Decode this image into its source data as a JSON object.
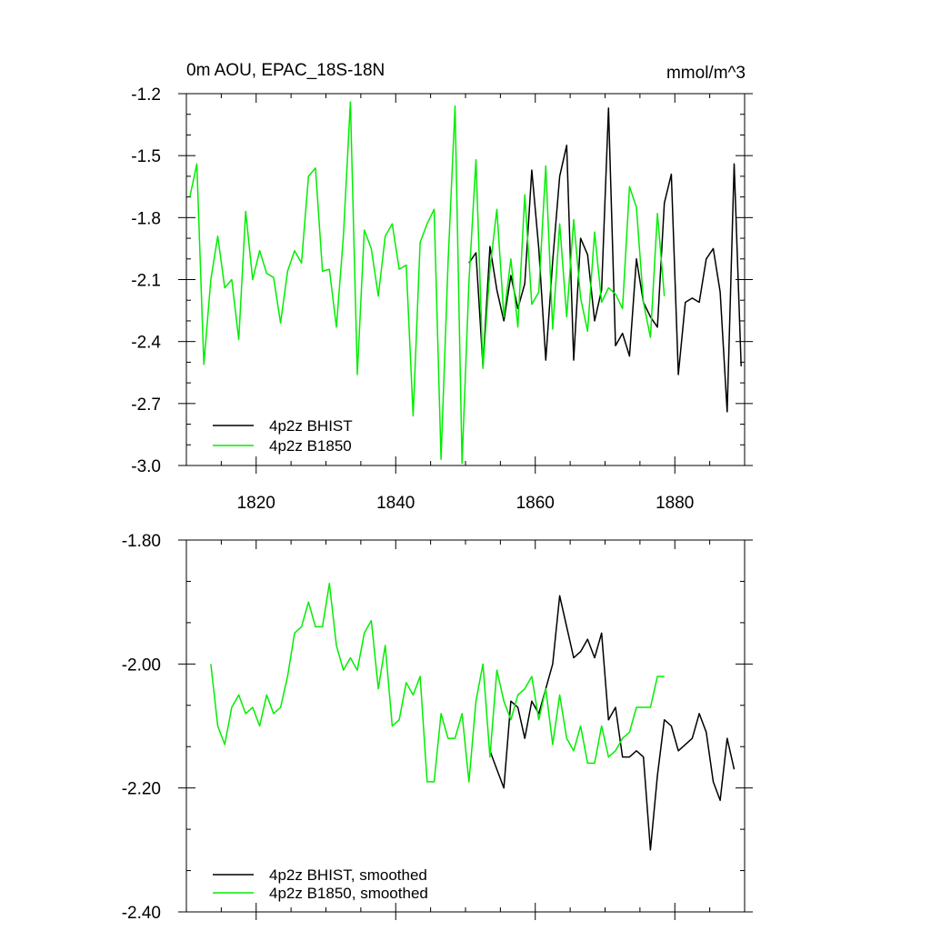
{
  "chart_data": [
    {
      "type": "line",
      "title": "0m AOU, EPAC_18S-18N",
      "units": "mmol/m^3",
      "xlim": [
        1810,
        1890
      ],
      "ylim": [
        -3.0,
        -1.2
      ],
      "xticks": [
        1820,
        1840,
        1860,
        1880
      ],
      "xtick_labels": [
        "1820",
        "1840",
        "1860",
        "1880"
      ],
      "yticks": [
        -3.0,
        -2.7,
        -2.4,
        -2.1,
        -1.8,
        -1.5,
        -1.2
      ],
      "ytick_labels": [
        "-3.0",
        "-2.7",
        "-2.4",
        "-2.1",
        "-1.8",
        "-1.5",
        "-1.2"
      ],
      "legend": "bottom-left",
      "series": [
        {
          "name": "4p2z BHIST",
          "color": "#000000",
          "x_start": 1850.5,
          "values": [
            -2.02,
            -1.97,
            -2.52,
            -1.94,
            -2.15,
            -2.3,
            -2.08,
            -2.24,
            -2.12,
            -1.57,
            -1.95,
            -2.49,
            -2.01,
            -1.6,
            -1.45,
            -2.49,
            -1.9,
            -1.98,
            -2.3,
            -2.15,
            -1.27,
            -2.42,
            -2.36,
            -2.47,
            -2.0,
            -2.21,
            -2.28,
            -2.33,
            -1.73,
            -1.59,
            -2.56,
            -2.21,
            -2.19,
            -2.21,
            -2.0,
            -1.95,
            -2.16,
            -2.74,
            -1.54,
            -2.52
          ]
        },
        {
          "name": "4p2z B1850",
          "color": "#00ee00",
          "x_start": 1810.5,
          "values": [
            -1.7,
            -1.54,
            -2.51,
            -2.1,
            -1.89,
            -2.14,
            -2.1,
            -2.39,
            -1.77,
            -2.1,
            -1.96,
            -2.07,
            -2.09,
            -2.31,
            -2.06,
            -1.96,
            -2.02,
            -1.6,
            -1.56,
            -2.06,
            -2.05,
            -2.33,
            -1.89,
            -1.24,
            -2.56,
            -1.86,
            -1.95,
            -2.18,
            -1.89,
            -1.83,
            -2.05,
            -2.03,
            -2.76,
            -1.92,
            -1.83,
            -1.76,
            -2.97,
            -2.02,
            -1.26,
            -2.99,
            -2.11,
            -1.52,
            -2.53,
            -2.05,
            -1.76,
            -2.28,
            -2.0,
            -2.33,
            -1.69,
            -2.22,
            -2.16,
            -1.55,
            -2.34,
            -1.83,
            -2.28,
            -1.81,
            -2.19,
            -2.35,
            -1.87,
            -2.21,
            -2.14,
            -2.17,
            -2.24,
            -1.65,
            -1.75,
            -2.21,
            -2.38,
            -1.78,
            -2.18
          ]
        }
      ]
    },
    {
      "type": "line",
      "xlim": [
        1810,
        1890
      ],
      "ylim": [
        -2.4,
        -1.8
      ],
      "xticks": [
        1820,
        1840,
        1860,
        1880
      ],
      "yticks": [
        -2.4,
        -2.2,
        -2.0,
        -1.8
      ],
      "ytick_labels": [
        "-2.40",
        "-2.20",
        "-2.00",
        "-1.80"
      ],
      "legend": "bottom-left",
      "series": [
        {
          "name": "4p2z BHIST, smoothed",
          "color": "#000000",
          "x_start": 1853.5,
          "values": [
            -2.14,
            -2.17,
            -2.2,
            -2.06,
            -2.07,
            -2.12,
            -2.06,
            -2.08,
            -2.04,
            -2.0,
            -1.89,
            -1.94,
            -1.99,
            -1.98,
            -1.96,
            -1.99,
            -1.95,
            -2.09,
            -2.07,
            -2.15,
            -2.15,
            -2.14,
            -2.15,
            -2.3,
            -2.18,
            -2.09,
            -2.1,
            -2.14,
            -2.13,
            -2.12,
            -2.08,
            -2.11,
            -2.19,
            -2.22,
            -2.12,
            -2.17
          ]
        },
        {
          "name": "4p2z B1850, smoothed",
          "color": "#00ee00",
          "x_start": 1813.5,
          "values": [
            -2.0,
            -2.1,
            -2.13,
            -2.07,
            -2.05,
            -2.08,
            -2.07,
            -2.1,
            -2.05,
            -2.08,
            -2.07,
            -2.02,
            -1.95,
            -1.94,
            -1.9,
            -1.94,
            -1.94,
            -1.87,
            -1.97,
            -2.01,
            -1.99,
            -2.01,
            -1.95,
            -1.93,
            -2.04,
            -1.97,
            -2.1,
            -2.09,
            -2.03,
            -2.05,
            -2.02,
            -2.19,
            -2.19,
            -2.08,
            -2.12,
            -2.12,
            -2.08,
            -2.19,
            -2.06,
            -2.0,
            -2.15,
            -2.01,
            -2.06,
            -2.09,
            -2.05,
            -2.04,
            -2.02,
            -2.09,
            -2.04,
            -2.13,
            -2.05,
            -2.12,
            -2.14,
            -2.1,
            -2.16,
            -2.16,
            -2.1,
            -2.15,
            -2.14,
            -2.12,
            -2.11,
            -2.07,
            -2.07,
            -2.07,
            -2.02,
            -2.02
          ]
        }
      ]
    }
  ]
}
